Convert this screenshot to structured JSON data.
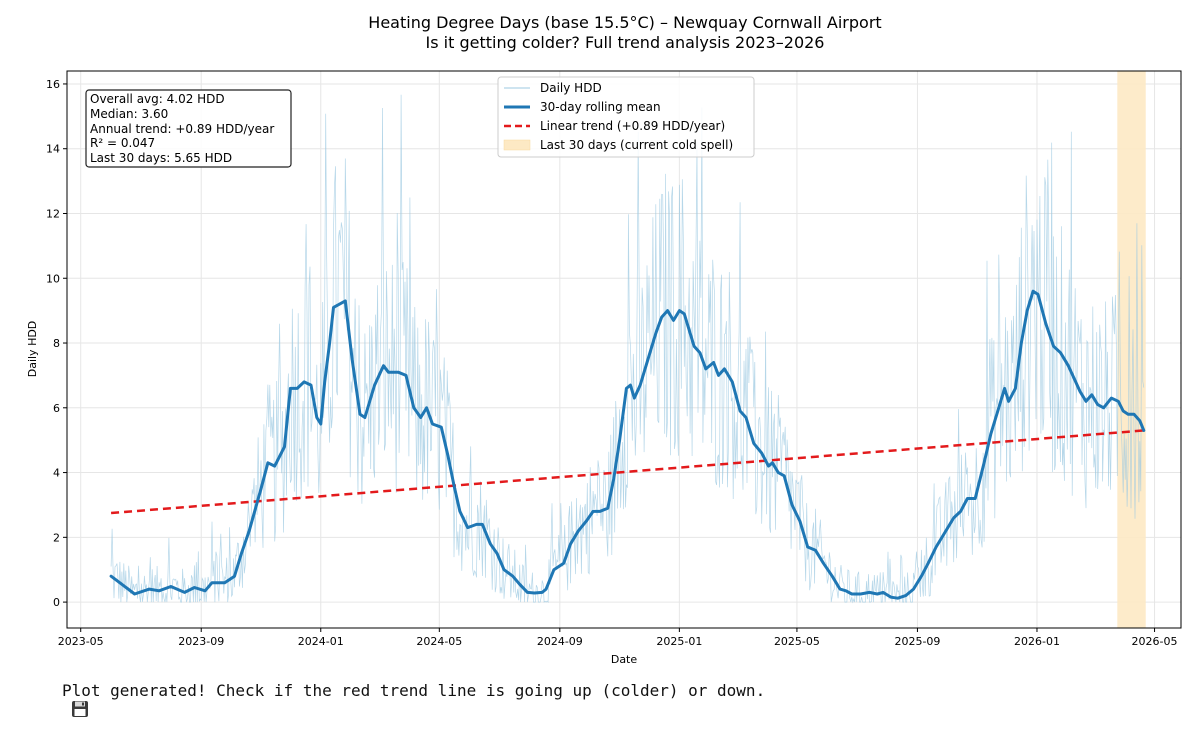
{
  "chart_data": {
    "type": "line",
    "title": "Heating Degree Days (base 15.5°C) – Newquay Cornwall Airport",
    "subtitle": "Is it getting colder? Full trend analysis 2023–2026",
    "xlabel": "Date",
    "ylabel": "Daily HDD",
    "xlim": [
      "2023-04-17",
      "2026-05-28"
    ],
    "ylim": [
      -0.8,
      16.4
    ],
    "x_ticks": [
      "2023-05",
      "2023-09",
      "2024-01",
      "2024-05",
      "2024-09",
      "2025-01",
      "2025-05",
      "2025-09",
      "2026-01",
      "2026-05"
    ],
    "y_ticks": [
      0,
      2,
      4,
      6,
      8,
      10,
      12,
      14,
      16
    ],
    "grid": true,
    "legend_position": "top-center",
    "legend": [
      {
        "label": "Daily HDD",
        "color": "#9ecae1",
        "style": "thin-line"
      },
      {
        "label": "30-day rolling mean",
        "color": "#1f77b4",
        "style": "thick-line"
      },
      {
        "label": "Linear trend (+0.89 HDD/year)",
        "color": "#e31a1c",
        "style": "dashed"
      },
      {
        "label": "Last 30 days (current cold spell)",
        "color": "#fde9c4",
        "style": "patch"
      }
    ],
    "stats_box": [
      "Overall avg: 4.02 HDD",
      "Median: 3.60",
      "Annual trend: +0.89 HDD/year",
      "R² = 0.047",
      "Last 30 days: 5.65 HDD"
    ],
    "highlight_span": [
      "2026-03-24",
      "2026-04-22"
    ],
    "series": [
      {
        "name": "30-day rolling mean",
        "color": "#1f77b4",
        "points": [
          [
            "2023-06-01",
            0.8
          ],
          [
            "2023-06-12",
            0.55
          ],
          [
            "2023-06-25",
            0.25
          ],
          [
            "2023-07-10",
            0.4
          ],
          [
            "2023-07-20",
            0.35
          ],
          [
            "2023-08-01",
            0.48
          ],
          [
            "2023-08-15",
            0.3
          ],
          [
            "2023-08-25",
            0.45
          ],
          [
            "2023-09-05",
            0.35
          ],
          [
            "2023-09-12",
            0.6
          ],
          [
            "2023-09-25",
            0.6
          ],
          [
            "2023-10-05",
            0.8
          ],
          [
            "2023-10-12",
            1.5
          ],
          [
            "2023-10-20",
            2.2
          ],
          [
            "2023-11-01",
            3.5
          ],
          [
            "2023-11-08",
            4.3
          ],
          [
            "2023-11-15",
            4.2
          ],
          [
            "2023-11-25",
            4.8
          ],
          [
            "2023-12-01",
            6.6
          ],
          [
            "2023-12-08",
            6.6
          ],
          [
            "2023-12-15",
            6.8
          ],
          [
            "2023-12-22",
            6.7
          ],
          [
            "2023-12-28",
            5.7
          ],
          [
            "2024-01-01",
            5.5
          ],
          [
            "2024-01-05",
            6.8
          ],
          [
            "2024-01-10",
            8.0
          ],
          [
            "2024-01-14",
            9.1
          ],
          [
            "2024-01-20",
            9.2
          ],
          [
            "2024-01-26",
            9.3
          ],
          [
            "2024-02-02",
            7.5
          ],
          [
            "2024-02-10",
            5.8
          ],
          [
            "2024-02-15",
            5.7
          ],
          [
            "2024-02-25",
            6.7
          ],
          [
            "2024-03-05",
            7.3
          ],
          [
            "2024-03-10",
            7.1
          ],
          [
            "2024-03-20",
            7.1
          ],
          [
            "2024-03-28",
            7.0
          ],
          [
            "2024-04-05",
            6.0
          ],
          [
            "2024-04-12",
            5.7
          ],
          [
            "2024-04-18",
            6.0
          ],
          [
            "2024-04-24",
            5.5
          ],
          [
            "2024-05-03",
            5.4
          ],
          [
            "2024-05-10",
            4.5
          ],
          [
            "2024-05-16",
            3.6
          ],
          [
            "2024-05-22",
            2.8
          ],
          [
            "2024-05-30",
            2.3
          ],
          [
            "2024-06-08",
            2.4
          ],
          [
            "2024-06-14",
            2.4
          ],
          [
            "2024-06-22",
            1.8
          ],
          [
            "2024-06-29",
            1.5
          ],
          [
            "2024-07-06",
            1.0
          ],
          [
            "2024-07-15",
            0.8
          ],
          [
            "2024-07-22",
            0.55
          ],
          [
            "2024-07-30",
            0.3
          ],
          [
            "2024-08-06",
            0.28
          ],
          [
            "2024-08-14",
            0.3
          ],
          [
            "2024-08-18",
            0.4
          ],
          [
            "2024-08-26",
            1.0
          ],
          [
            "2024-09-05",
            1.2
          ],
          [
            "2024-09-12",
            1.8
          ],
          [
            "2024-09-20",
            2.2
          ],
          [
            "2024-09-28",
            2.5
          ],
          [
            "2024-10-05",
            2.8
          ],
          [
            "2024-10-12",
            2.8
          ],
          [
            "2024-10-20",
            2.9
          ],
          [
            "2024-10-26",
            3.8
          ],
          [
            "2024-11-01",
            5.0
          ],
          [
            "2024-11-08",
            6.6
          ],
          [
            "2024-11-12",
            6.7
          ],
          [
            "2024-11-16",
            6.3
          ],
          [
            "2024-11-22",
            6.7
          ],
          [
            "2024-11-30",
            7.5
          ],
          [
            "2024-12-08",
            8.3
          ],
          [
            "2024-12-14",
            8.8
          ],
          [
            "2024-12-20",
            9.0
          ],
          [
            "2024-12-26",
            8.7
          ],
          [
            "2025-01-01",
            9.0
          ],
          [
            "2025-01-06",
            8.9
          ],
          [
            "2025-01-10",
            8.5
          ],
          [
            "2025-01-16",
            7.9
          ],
          [
            "2025-01-22",
            7.7
          ],
          [
            "2025-01-28",
            7.2
          ],
          [
            "2025-02-05",
            7.4
          ],
          [
            "2025-02-10",
            7.0
          ],
          [
            "2025-02-16",
            7.2
          ],
          [
            "2025-02-24",
            6.8
          ],
          [
            "2025-03-04",
            5.9
          ],
          [
            "2025-03-10",
            5.7
          ],
          [
            "2025-03-18",
            4.9
          ],
          [
            "2025-03-26",
            4.6
          ],
          [
            "2025-04-02",
            4.2
          ],
          [
            "2025-04-06",
            4.3
          ],
          [
            "2025-04-12",
            4.0
          ],
          [
            "2025-04-18",
            3.9
          ],
          [
            "2025-04-26",
            3.0
          ],
          [
            "2025-05-04",
            2.5
          ],
          [
            "2025-05-12",
            1.7
          ],
          [
            "2025-05-20",
            1.6
          ],
          [
            "2025-05-28",
            1.2
          ],
          [
            "2025-06-06",
            0.8
          ],
          [
            "2025-06-14",
            0.4
          ],
          [
            "2025-06-20",
            0.35
          ],
          [
            "2025-06-26",
            0.25
          ],
          [
            "2025-07-05",
            0.25
          ],
          [
            "2025-07-14",
            0.3
          ],
          [
            "2025-07-22",
            0.25
          ],
          [
            "2025-07-28",
            0.3
          ],
          [
            "2025-08-05",
            0.15
          ],
          [
            "2025-08-12",
            0.12
          ],
          [
            "2025-08-20",
            0.2
          ],
          [
            "2025-08-28",
            0.4
          ],
          [
            "2025-09-05",
            0.8
          ],
          [
            "2025-09-12",
            1.2
          ],
          [
            "2025-09-20",
            1.7
          ],
          [
            "2025-09-28",
            2.1
          ],
          [
            "2025-10-08",
            2.6
          ],
          [
            "2025-10-15",
            2.8
          ],
          [
            "2025-10-22",
            3.2
          ],
          [
            "2025-10-30",
            3.2
          ],
          [
            "2025-11-08",
            4.3
          ],
          [
            "2025-11-15",
            5.2
          ],
          [
            "2025-11-22",
            5.9
          ],
          [
            "2025-11-29",
            6.6
          ],
          [
            "2025-12-03",
            6.2
          ],
          [
            "2025-12-10",
            6.6
          ],
          [
            "2025-12-16",
            8.0
          ],
          [
            "2025-12-22",
            9.0
          ],
          [
            "2025-12-28",
            9.6
          ],
          [
            "2026-01-02",
            9.5
          ],
          [
            "2026-01-10",
            8.6
          ],
          [
            "2026-01-18",
            7.9
          ],
          [
            "2026-01-25",
            7.7
          ],
          [
            "2026-02-02",
            7.3
          ],
          [
            "2026-02-08",
            6.9
          ],
          [
            "2026-02-14",
            6.5
          ],
          [
            "2026-02-20",
            6.2
          ],
          [
            "2026-02-26",
            6.4
          ],
          [
            "2026-03-04",
            6.1
          ],
          [
            "2026-03-10",
            6.0
          ],
          [
            "2026-03-18",
            6.3
          ],
          [
            "2026-03-25",
            6.2
          ],
          [
            "2026-03-30",
            5.9
          ],
          [
            "2026-04-04",
            5.8
          ],
          [
            "2026-04-10",
            5.8
          ],
          [
            "2026-04-16",
            5.6
          ],
          [
            "2026-04-20",
            5.3
          ]
        ]
      },
      {
        "name": "Linear trend (+0.89 HDD/year)",
        "color": "#e31a1c",
        "points": [
          [
            "2023-06-01",
            2.75
          ],
          [
            "2026-04-20",
            5.3
          ]
        ]
      }
    ]
  },
  "footer": {
    "icon": "floppy-disk-icon",
    "text": "Plot generated! Check if the red trend line is going up (colder) or down."
  }
}
